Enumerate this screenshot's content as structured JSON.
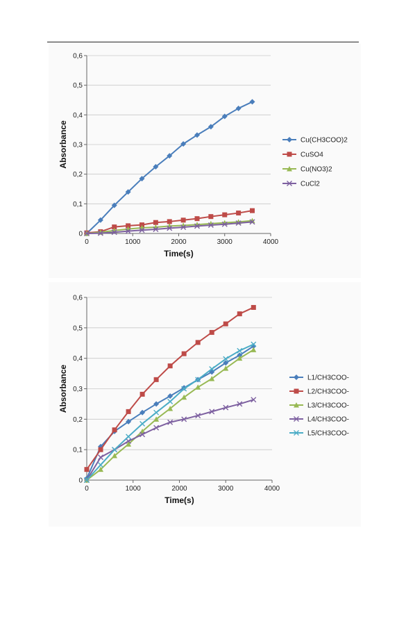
{
  "chart_data": [
    {
      "type": "line",
      "ylabel": "Absorbance",
      "xlabel": "Time(s)",
      "xlim": [
        0,
        4000
      ],
      "ylim": [
        0,
        0.6
      ],
      "xticks": [
        0,
        1000,
        2000,
        3000,
        4000
      ],
      "xtick_labels": [
        "0",
        "1000",
        "2000",
        "3000",
        "4000"
      ],
      "yticks": [
        0,
        0.1,
        0.2,
        0.3,
        0.4,
        0.5,
        0.6
      ],
      "ytick_labels": [
        "0",
        "0,1",
        "0,2",
        "0,3",
        "0,4",
        "0,5",
        "0,6"
      ],
      "legend_position": "right",
      "grid": "horizontal",
      "x": [
        0,
        300,
        600,
        900,
        1200,
        1500,
        1800,
        2100,
        2400,
        2700,
        3000,
        3300,
        3600
      ],
      "series": [
        {
          "name": "Cu(CH3COO)2",
          "color": "#4a7ebb",
          "marker": "diamond",
          "values": [
            0.0,
            0.045,
            0.095,
            0.14,
            0.185,
            0.225,
            0.262,
            0.302,
            0.332,
            0.36,
            0.395,
            0.422,
            0.444
          ]
        },
        {
          "name": "CuSO4",
          "color": "#be4b48",
          "marker": "square",
          "values": [
            0.002,
            0.006,
            0.022,
            0.026,
            0.029,
            0.037,
            0.04,
            0.045,
            0.05,
            0.057,
            0.063,
            0.069,
            0.077
          ]
        },
        {
          "name": "Cu(NO3)2",
          "color": "#98b954",
          "marker": "triangle",
          "values": [
            0.0,
            0.004,
            0.01,
            0.015,
            0.019,
            0.021,
            0.025,
            0.027,
            0.03,
            0.033,
            0.036,
            0.039,
            0.043
          ]
        },
        {
          "name": "CuCl2",
          "color": "#7d60a0",
          "marker": "x",
          "values": [
            0.0,
            0.001,
            0.004,
            0.008,
            0.011,
            0.014,
            0.018,
            0.021,
            0.025,
            0.028,
            0.031,
            0.035,
            0.039
          ]
        }
      ]
    },
    {
      "type": "line",
      "ylabel": "Absorbance",
      "xlabel": "Time(s)",
      "xlim": [
        0,
        4000
      ],
      "ylim": [
        0,
        0.6
      ],
      "xticks": [
        0,
        1000,
        2000,
        3000,
        4000
      ],
      "xtick_labels": [
        "0",
        "1000",
        "2000",
        "3000",
        "4000"
      ],
      "yticks": [
        0,
        0.1,
        0.2,
        0.3,
        0.4,
        0.5,
        0.6
      ],
      "ytick_labels": [
        "0",
        "0,1",
        "0,2",
        "0,3",
        "0,4",
        "0,5",
        "0,6"
      ],
      "legend_position": "right",
      "grid": "horizontal",
      "x": [
        0,
        300,
        600,
        900,
        1200,
        1500,
        1800,
        2100,
        2400,
        2700,
        3000,
        3300,
        3600
      ],
      "series": [
        {
          "name": "L1/CH3COO-",
          "color": "#4a7ebb",
          "marker": "diamond",
          "values": [
            0.005,
            0.11,
            0.16,
            0.192,
            0.222,
            0.25,
            0.276,
            0.303,
            0.33,
            0.355,
            0.385,
            0.41,
            0.44
          ]
        },
        {
          "name": "L2/CH3COO-",
          "color": "#be4b48",
          "marker": "square",
          "values": [
            0.035,
            0.1,
            0.165,
            0.225,
            0.282,
            0.33,
            0.375,
            0.415,
            0.452,
            0.485,
            0.513,
            0.546,
            0.567
          ]
        },
        {
          "name": "L3/CH3COO-",
          "color": "#98b954",
          "marker": "triangle",
          "values": [
            0.0,
            0.035,
            0.08,
            0.118,
            0.16,
            0.2,
            0.235,
            0.272,
            0.305,
            0.333,
            0.367,
            0.4,
            0.428
          ]
        },
        {
          "name": "L4/CH3COO-",
          "color": "#7d60a0",
          "marker": "x",
          "values": [
            0.0,
            0.075,
            0.1,
            0.128,
            0.15,
            0.172,
            0.19,
            0.2,
            0.212,
            0.225,
            0.238,
            0.25,
            0.264
          ]
        },
        {
          "name": "L5/CH3COO-",
          "color": "#4bacc6",
          "marker": "x",
          "values": [
            0.0,
            0.05,
            0.1,
            0.143,
            0.185,
            0.222,
            0.258,
            0.3,
            0.33,
            0.365,
            0.398,
            0.425,
            0.446
          ]
        }
      ]
    }
  ]
}
